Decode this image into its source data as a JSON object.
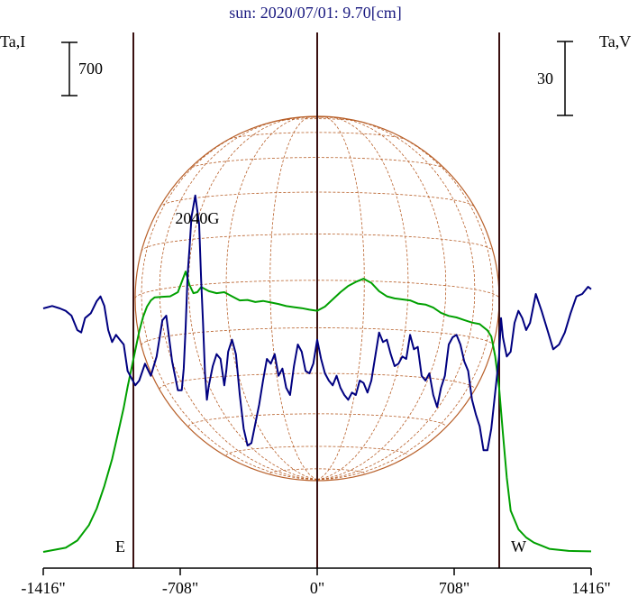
{
  "chart_data": {
    "type": "line",
    "title": "sun: 2020/07/01: 9.70[cm]",
    "ylabel_left": "Ta,I",
    "ylabel_right": "Ta,V",
    "scale_bar_left": "700",
    "scale_bar_right": "30",
    "x_tick_labels": [
      "-1416\"",
      "-708\"",
      "0\"",
      "708\"",
      "1416\""
    ],
    "xlim": [
      -1416,
      1416
    ],
    "x_ticks": [
      -1416,
      -708,
      0,
      708,
      1416
    ],
    "limb_labels": {
      "east": "E",
      "west": "W"
    },
    "limb_positions": [
      -944,
      944
    ],
    "center_position": 0,
    "annotation": {
      "text": "2040G",
      "x": -620
    },
    "series": [
      {
        "name": "",
        "color": "#00a000",
        "x": [
          -1416,
          -1300,
          -1240,
          -1180,
          -1140,
          -1100,
          -1060,
          -1030,
          -1000,
          -980,
          -960,
          -940,
          -920,
          -900,
          -880,
          -860,
          -840,
          -800,
          -760,
          -720,
          -700,
          -680,
          -660,
          -640,
          -620,
          -600,
          -560,
          -520,
          -480,
          -440,
          -400,
          -360,
          -320,
          -280,
          -240,
          -200,
          -160,
          -120,
          -80,
          -40,
          0,
          40,
          80,
          120,
          160,
          200,
          240,
          280,
          320,
          360,
          400,
          440,
          480,
          520,
          560,
          600,
          640,
          680,
          720,
          760,
          800,
          840,
          860,
          880,
          900,
          920,
          940,
          960,
          980,
          1000,
          1040,
          1080,
          1120,
          1160,
          1200,
          1300,
          1416
        ],
        "y": [
          0,
          40,
          110,
          260,
          420,
          640,
          900,
          1150,
          1400,
          1600,
          1780,
          1960,
          2140,
          2280,
          2380,
          2440,
          2470,
          2475,
          2480,
          2520,
          2620,
          2720,
          2590,
          2510,
          2520,
          2570,
          2530,
          2510,
          2520,
          2480,
          2440,
          2445,
          2425,
          2435,
          2420,
          2405,
          2385,
          2375,
          2365,
          2350,
          2340,
          2380,
          2450,
          2520,
          2580,
          2620,
          2650,
          2610,
          2530,
          2480,
          2460,
          2450,
          2440,
          2410,
          2400,
          2370,
          2320,
          2290,
          2275,
          2250,
          2225,
          2210,
          2180,
          2150,
          2090,
          1900,
          1600,
          1150,
          720,
          400,
          220,
          140,
          90,
          60,
          30,
          10,
          5
        ]
      },
      {
        "name": "",
        "color": "#000080",
        "x": [
          -1416,
          -1370,
          -1330,
          -1300,
          -1270,
          -1240,
          -1220,
          -1200,
          -1170,
          -1140,
          -1120,
          -1100,
          -1080,
          -1060,
          -1040,
          -1020,
          -1000,
          -980,
          -960,
          -940,
          -920,
          -890,
          -860,
          -830,
          -800,
          -780,
          -750,
          -720,
          -700,
          -690,
          -680,
          -670,
          -660,
          -650,
          -630,
          -610,
          -600,
          -590,
          -580,
          -570,
          -560,
          -540,
          -520,
          -500,
          -480,
          -470,
          -460,
          -440,
          -420,
          -400,
          -380,
          -360,
          -340,
          -320,
          -300,
          -280,
          -260,
          -240,
          -220,
          -200,
          -180,
          -160,
          -140,
          -120,
          -100,
          -80,
          -60,
          -40,
          -20,
          0,
          20,
          40,
          60,
          80,
          100,
          120,
          140,
          160,
          180,
          200,
          220,
          240,
          260,
          280,
          300,
          320,
          340,
          360,
          380,
          400,
          420,
          440,
          460,
          480,
          500,
          520,
          540,
          560,
          580,
          600,
          620,
          640,
          660,
          680,
          700,
          720,
          740,
          760,
          780,
          800,
          820,
          840,
          860,
          880,
          900,
          920,
          940,
          950,
          960,
          980,
          1000,
          1020,
          1040,
          1060,
          1080,
          1100,
          1130,
          1160,
          1190,
          1220,
          1250,
          1280,
          1310,
          1340,
          1370,
          1400,
          1416
        ],
        "y": [
          0,
          1,
          0,
          -1,
          -3,
          -9,
          -10,
          -4,
          -2,
          3,
          5,
          1,
          -9,
          -14,
          -11,
          -13,
          -15,
          -26,
          -29,
          -32,
          -30,
          -23,
          -28,
          -20,
          -5,
          -3,
          -22,
          -34,
          -34,
          -25,
          -8,
          14,
          25,
          38,
          47,
          35,
          12,
          -6,
          -27,
          -38,
          -32,
          -24,
          -19,
          -21,
          -32,
          -26,
          -18,
          -13,
          -19,
          -36,
          -50,
          -57,
          -56,
          -48,
          -40,
          -30,
          -21,
          -23,
          -19,
          -28,
          -25,
          -33,
          -36,
          -24,
          -15,
          -18,
          -26,
          -27,
          -23,
          -13,
          -21,
          -27,
          -30,
          -32,
          -28,
          -33,
          -36,
          -38,
          -35,
          -36,
          -30,
          -31,
          -35,
          -30,
          -20,
          -10,
          -14,
          -13,
          -19,
          -24,
          -23,
          -20,
          -21,
          -11,
          -17,
          -16,
          -28,
          -30,
          -27,
          -36,
          -41,
          -33,
          -28,
          -15,
          -12,
          -11,
          -15,
          -22,
          -26,
          -38,
          -44,
          -49,
          -59,
          -59,
          -50,
          -35,
          -20,
          -4,
          -12,
          -20,
          -18,
          -6,
          -1,
          -4,
          -9,
          -6,
          6,
          -1,
          -9,
          -17,
          -15,
          -10,
          -2,
          5,
          6,
          9,
          8
        ]
      }
    ]
  }
}
